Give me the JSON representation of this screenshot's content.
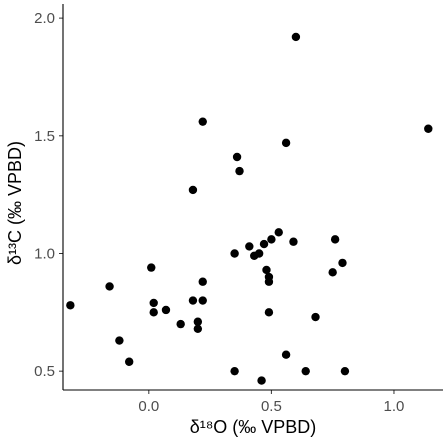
{
  "chart_data": {
    "type": "scatter",
    "title": "",
    "xlabel": "δ¹⁸O (‰ VPBD)",
    "ylabel": "δ¹³C (‰ VPBD)",
    "xlim": [
      -0.35,
      1.2
    ],
    "ylim": [
      0.42,
      2.06
    ],
    "x_ticks": [
      0.0,
      0.5,
      1.0
    ],
    "x_tick_labels": [
      "0.0",
      "0.5",
      "1.0"
    ],
    "y_ticks": [
      0.5,
      1.0,
      1.5,
      2.0
    ],
    "y_tick_labels": [
      "0.5",
      "1.0",
      "1.5",
      "2.0"
    ],
    "grid": false,
    "legend": "none",
    "point_color": "#000000",
    "series": [
      {
        "points": [
          {
            "x": -0.32,
            "y": 0.78
          },
          {
            "x": -0.16,
            "y": 0.86
          },
          {
            "x": -0.12,
            "y": 0.63
          },
          {
            "x": -0.08,
            "y": 0.54
          },
          {
            "x": 0.01,
            "y": 0.94
          },
          {
            "x": 0.02,
            "y": 0.79
          },
          {
            "x": 0.02,
            "y": 0.75
          },
          {
            "x": 0.07,
            "y": 0.76
          },
          {
            "x": 0.13,
            "y": 0.7
          },
          {
            "x": 0.18,
            "y": 0.8
          },
          {
            "x": 0.18,
            "y": 1.27
          },
          {
            "x": 0.2,
            "y": 0.71
          },
          {
            "x": 0.2,
            "y": 0.68
          },
          {
            "x": 0.22,
            "y": 0.88
          },
          {
            "x": 0.22,
            "y": 0.8
          },
          {
            "x": 0.22,
            "y": 1.56
          },
          {
            "x": 0.35,
            "y": 1.0
          },
          {
            "x": 0.35,
            "y": 0.5
          },
          {
            "x": 0.36,
            "y": 1.41
          },
          {
            "x": 0.37,
            "y": 1.35
          },
          {
            "x": 0.41,
            "y": 1.03
          },
          {
            "x": 0.43,
            "y": 0.99
          },
          {
            "x": 0.45,
            "y": 1.0
          },
          {
            "x": 0.46,
            "y": 0.46
          },
          {
            "x": 0.47,
            "y": 1.04
          },
          {
            "x": 0.48,
            "y": 0.93
          },
          {
            "x": 0.49,
            "y": 0.9
          },
          {
            "x": 0.49,
            "y": 0.88
          },
          {
            "x": 0.49,
            "y": 0.75
          },
          {
            "x": 0.5,
            "y": 1.06
          },
          {
            "x": 0.53,
            "y": 1.09
          },
          {
            "x": 0.56,
            "y": 1.47
          },
          {
            "x": 0.56,
            "y": 0.57
          },
          {
            "x": 0.59,
            "y": 1.05
          },
          {
            "x": 0.6,
            "y": 1.92
          },
          {
            "x": 0.64,
            "y": 0.5
          },
          {
            "x": 0.68,
            "y": 0.73
          },
          {
            "x": 0.75,
            "y": 0.92
          },
          {
            "x": 0.76,
            "y": 1.06
          },
          {
            "x": 0.79,
            "y": 0.96
          },
          {
            "x": 0.8,
            "y": 0.5
          },
          {
            "x": 1.14,
            "y": 1.53
          }
        ]
      }
    ]
  }
}
